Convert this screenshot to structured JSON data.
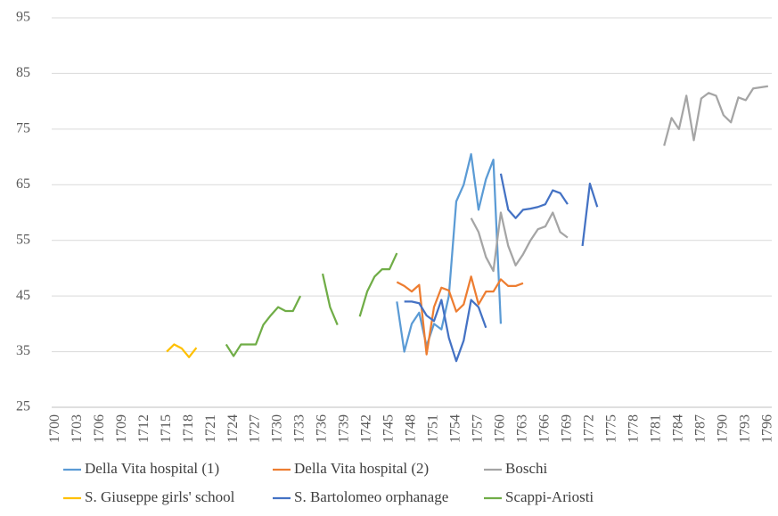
{
  "chart_data": {
    "type": "line",
    "xlim": [
      1699.5,
      1796.5
    ],
    "xticks": [
      1700,
      1703,
      1706,
      1709,
      1712,
      1715,
      1718,
      1721,
      1724,
      1727,
      1730,
      1733,
      1736,
      1739,
      1742,
      1745,
      1748,
      1751,
      1754,
      1757,
      1760,
      1763,
      1766,
      1769,
      1772,
      1775,
      1778,
      1781,
      1784,
      1787,
      1790,
      1793,
      1796
    ],
    "ylim": [
      25,
      95
    ],
    "yticks": [
      25,
      35,
      45,
      55,
      65,
      75,
      85,
      95
    ],
    "grid": true,
    "legend": "bottom",
    "series": [
      {
        "name": "Della Vita hospital (1)",
        "color": "#5b9bd5",
        "x": [
          1746,
          1747,
          1748,
          1749,
          1750,
          1751,
          1752,
          1753,
          1754,
          1755,
          1756,
          1757,
          1758,
          1759,
          1760
        ],
        "values": [
          44,
          35,
          40,
          42,
          36,
          40,
          39,
          45,
          62,
          65,
          70.5,
          60.5,
          66,
          69.5,
          40
        ]
      },
      {
        "name": "Della Vita hospital (2)",
        "color": "#ed7d31",
        "x": [
          1746,
          1747,
          1748,
          1749,
          1750,
          1751,
          1752,
          1753,
          1754,
          1755,
          1756,
          1757,
          1758,
          1759,
          1760,
          1761,
          1762,
          1763
        ],
        "values": [
          47.5,
          46.8,
          45.8,
          47,
          34.5,
          43,
          46.5,
          46,
          42.2,
          43.5,
          48.5,
          43.5,
          45.8,
          45.8,
          48,
          46.8,
          46.8,
          47.3
        ]
      },
      {
        "name": "Boschi",
        "color": "#a5a5a5",
        "x": [
          1756,
          1757,
          1758,
          1759,
          1760,
          1761,
          1762,
          1763,
          1764,
          1765,
          1766,
          1767,
          1768,
          1769,
          1770,
          1782,
          1783,
          1784,
          1785,
          1786,
          1787,
          1788,
          1789,
          1790,
          1791,
          1792,
          1793,
          1794,
          1795,
          1796
        ],
        "values": [
          59,
          56.5,
          52,
          49.5,
          60,
          54,
          50.5,
          52.5,
          55,
          57,
          57.5,
          60,
          56.5,
          55.5,
          null,
          72,
          77,
          75,
          81,
          73,
          80.5,
          81.5,
          81,
          77.5,
          76.2,
          80.7,
          80.2,
          82.3,
          82.5,
          82.7
        ]
      },
      {
        "name": "S. Giuseppe girls' school",
        "color": "#ffc000",
        "x": [
          1715,
          1716,
          1717,
          1718,
          1719
        ],
        "values": [
          35,
          36.3,
          35.6,
          34,
          35.7
        ]
      },
      {
        "name": "S. Bartolomeo orphanage",
        "color": "#4472c4",
        "x": [
          1747,
          1748,
          1749,
          1750,
          1751,
          1752,
          1753,
          1754,
          1755,
          1756,
          1757,
          1758,
          1759,
          1760,
          1761,
          1762,
          1763,
          1764,
          1765,
          1766,
          1767,
          1768,
          1769,
          1770,
          1771,
          1772,
          1773
        ],
        "values": [
          44,
          44,
          43.7,
          41.5,
          40.5,
          44.3,
          37.5,
          33.3,
          37,
          44.3,
          43,
          39.3,
          null,
          67,
          60.5,
          59,
          60.5,
          60.7,
          61,
          61.5,
          64,
          63.5,
          61.5,
          null,
          54,
          65.2,
          61
        ]
      },
      {
        "name": "Scappi-Ariosti",
        "color": "#70ad47",
        "x": [
          1723,
          1724,
          1725,
          1726,
          1727,
          1728,
          1729,
          1730,
          1731,
          1732,
          1733,
          1734,
          1736,
          1737,
          1738,
          1739,
          1741,
          1742,
          1743,
          1744,
          1745,
          1746
        ],
        "values": [
          36.3,
          34.2,
          36.3,
          36.3,
          36.3,
          39.8,
          41.5,
          43,
          42.3,
          42.3,
          45,
          null,
          49,
          43,
          39.8,
          null,
          41.3,
          45.8,
          48.5,
          49.8,
          49.8,
          52.7
        ]
      }
    ]
  }
}
